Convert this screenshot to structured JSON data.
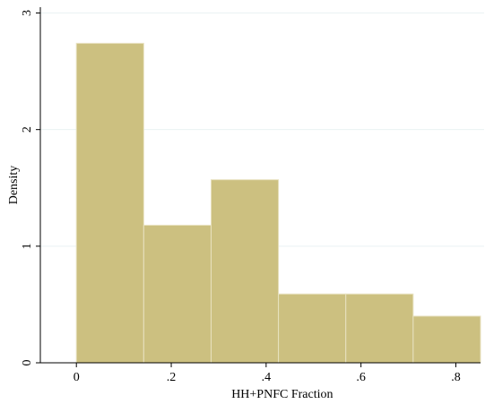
{
  "chart_data": {
    "type": "bar",
    "title": "",
    "xlabel": "HH+PNFC Fraction",
    "ylabel": "Density",
    "bins": [
      {
        "start": 0.0,
        "end": 0.142,
        "value": 2.74
      },
      {
        "start": 0.142,
        "end": 0.284,
        "value": 1.18
      },
      {
        "start": 0.284,
        "end": 0.426,
        "value": 1.57
      },
      {
        "start": 0.426,
        "end": 0.568,
        "value": 0.59
      },
      {
        "start": 0.568,
        "end": 0.71,
        "value": 0.59
      },
      {
        "start": 0.71,
        "end": 0.852,
        "value": 0.4
      }
    ],
    "xlim": [
      -0.076,
      0.852
    ],
    "ylim": [
      0,
      3.05
    ],
    "xticks": [
      {
        "value": 0,
        "label": "0"
      },
      {
        "value": 0.2,
        "label": ".2"
      },
      {
        "value": 0.4,
        "label": ".4"
      },
      {
        "value": 0.6,
        "label": ".6"
      },
      {
        "value": 0.8,
        "label": ".8"
      }
    ],
    "yticks": [
      {
        "value": 0,
        "label": "0"
      },
      {
        "value": 1,
        "label": "1"
      },
      {
        "value": 2,
        "label": "2"
      },
      {
        "value": 3,
        "label": "3"
      }
    ],
    "grid": true,
    "bar_color": "#ccc080",
    "bar_edge_color": "#e8e2c0",
    "grid_color": "#eaf2f3"
  }
}
